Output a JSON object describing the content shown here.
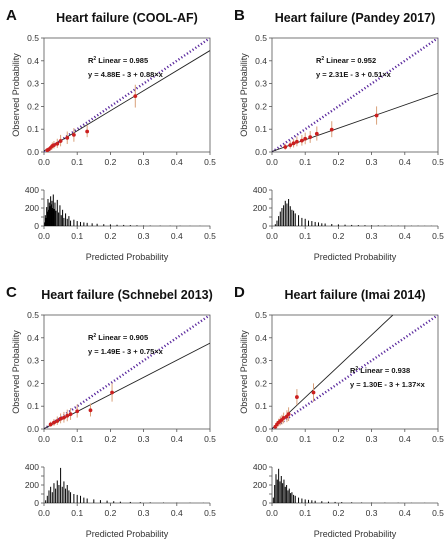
{
  "panels": [
    {
      "letter": "A",
      "title": "Heart failure (COOL-AF)",
      "ylabel": "Observed Probability",
      "xlabel": "Predicted Probability",
      "r2_text": "Linear = 0.985",
      "eq_text": "y = 4.88E - 3 + 0.88×x"
    },
    {
      "letter": "B",
      "title": "Heart failure (Pandey 2017)",
      "ylabel": "Observed Probability",
      "xlabel": "Predicted Probability",
      "r2_text": "Linear = 0.952",
      "eq_text": "y = 2.31E - 3 + 0.51×x"
    },
    {
      "letter": "C",
      "title": "Heart failure (Schnebel 2013)",
      "ylabel": "Observed Probability",
      "xlabel": "Predicted Probability",
      "r2_text": "Linear = 0.905",
      "eq_text": "y = 1.49E - 3 + 0.75×x"
    },
    {
      "letter": "D",
      "title": "Heart failure (Imai 2014)",
      "ylabel": "Observed Probability",
      "xlabel": "Predicted Probability",
      "r2_text": "Linear = 0.938",
      "eq_text": "y = 1.30E - 3 + 1.37×x"
    }
  ],
  "colors": {
    "identity": "#5b2a9e",
    "fit": "#222222",
    "point": "#cc1f1f",
    "errorbar": "#d9a07a",
    "hist": "#000000"
  },
  "chart_data": [
    {
      "type": "scatter",
      "title": "Heart failure (COOL-AF)",
      "xlabel": "Predicted Probability",
      "ylabel": "Observed Probability",
      "xlim": [
        0,
        0.5
      ],
      "ylim": [
        0,
        0.5
      ],
      "xticks": [
        "0.0",
        "0.1",
        "0.2",
        "0.3",
        "0.4",
        "0.5"
      ],
      "yticks": [
        "0.0",
        "0.1",
        "0.2",
        "0.3",
        "0.4",
        "0.5"
      ],
      "fit": {
        "intercept": 0.00488,
        "slope": 0.88,
        "r2": 0.985
      },
      "points": [
        {
          "x": 0.01,
          "y": 0.008,
          "lo": 0.004,
          "hi": 0.014
        },
        {
          "x": 0.015,
          "y": 0.012,
          "lo": 0.006,
          "hi": 0.02
        },
        {
          "x": 0.02,
          "y": 0.018,
          "lo": 0.008,
          "hi": 0.03
        },
        {
          "x": 0.025,
          "y": 0.026,
          "lo": 0.012,
          "hi": 0.042
        },
        {
          "x": 0.03,
          "y": 0.03,
          "lo": 0.015,
          "hi": 0.048
        },
        {
          "x": 0.04,
          "y": 0.036,
          "lo": 0.018,
          "hi": 0.058
        },
        {
          "x": 0.05,
          "y": 0.048,
          "lo": 0.025,
          "hi": 0.075
        },
        {
          "x": 0.07,
          "y": 0.062,
          "lo": 0.035,
          "hi": 0.09
        },
        {
          "x": 0.09,
          "y": 0.075,
          "lo": 0.045,
          "hi": 0.105
        },
        {
          "x": 0.13,
          "y": 0.09,
          "lo": 0.065,
          "hi": 0.118
        },
        {
          "x": 0.275,
          "y": 0.245,
          "lo": 0.195,
          "hi": 0.295
        }
      ],
      "hist": {
        "ylim": [
          0,
          400
        ],
        "yticks": [
          "0",
          "100",
          "200",
          "300",
          "400"
        ],
        "bins": [
          0.002,
          0.004,
          0.006,
          0.008,
          0.01,
          0.012,
          0.014,
          0.016,
          0.018,
          0.02,
          0.022,
          0.024,
          0.026,
          0.028,
          0.03,
          0.033,
          0.036,
          0.04,
          0.044,
          0.048,
          0.052,
          0.056,
          0.06,
          0.065,
          0.07,
          0.075,
          0.08,
          0.09,
          0.1,
          0.11,
          0.12,
          0.13,
          0.145,
          0.16,
          0.18,
          0.2,
          0.22,
          0.24,
          0.26,
          0.28,
          0.3,
          0.32,
          0.35,
          0.38,
          0.41,
          0.44,
          0.47,
          0.5
        ],
        "counts": [
          40,
          120,
          90,
          210,
          160,
          300,
          180,
          260,
          220,
          330,
          240,
          280,
          200,
          350,
          190,
          260,
          170,
          290,
          150,
          230,
          120,
          180,
          90,
          140,
          80,
          110,
          60,
          70,
          55,
          45,
          40,
          35,
          30,
          25,
          20,
          18,
          14,
          12,
          10,
          8,
          6,
          5,
          4,
          3,
          3,
          2,
          2,
          1
        ]
      }
    },
    {
      "type": "scatter",
      "title": "Heart failure (Pandey 2017)",
      "xlabel": "Predicted Probability",
      "ylabel": "Observed Probability",
      "xlim": [
        0,
        0.5
      ],
      "ylim": [
        0,
        0.5
      ],
      "xticks": [
        "0.0",
        "0.1",
        "0.2",
        "0.3",
        "0.4",
        "0.5"
      ],
      "yticks": [
        "0.0",
        "0.1",
        "0.2",
        "0.3",
        "0.4",
        "0.5"
      ],
      "fit": {
        "intercept": 0.00231,
        "slope": 0.51,
        "r2": 0.952
      },
      "points": [
        {
          "x": 0.04,
          "y": 0.022,
          "lo": 0.01,
          "hi": 0.036
        },
        {
          "x": 0.055,
          "y": 0.03,
          "lo": 0.015,
          "hi": 0.048
        },
        {
          "x": 0.065,
          "y": 0.038,
          "lo": 0.02,
          "hi": 0.058
        },
        {
          "x": 0.075,
          "y": 0.045,
          "lo": 0.025,
          "hi": 0.068
        },
        {
          "x": 0.09,
          "y": 0.05,
          "lo": 0.028,
          "hi": 0.075
        },
        {
          "x": 0.1,
          "y": 0.058,
          "lo": 0.034,
          "hi": 0.085
        },
        {
          "x": 0.115,
          "y": 0.065,
          "lo": 0.04,
          "hi": 0.092
        },
        {
          "x": 0.135,
          "y": 0.08,
          "lo": 0.05,
          "hi": 0.112
        },
        {
          "x": 0.18,
          "y": 0.098,
          "lo": 0.065,
          "hi": 0.135
        },
        {
          "x": 0.315,
          "y": 0.16,
          "lo": 0.12,
          "hi": 0.2
        }
      ],
      "hist": {
        "ylim": [
          0,
          400
        ],
        "yticks": [
          "0",
          "100",
          "200",
          "300",
          "400"
        ],
        "bins": [
          0.01,
          0.015,
          0.02,
          0.025,
          0.03,
          0.035,
          0.04,
          0.045,
          0.05,
          0.055,
          0.06,
          0.065,
          0.07,
          0.08,
          0.09,
          0.1,
          0.11,
          0.12,
          0.13,
          0.14,
          0.15,
          0.16,
          0.18,
          0.2,
          0.22,
          0.24,
          0.26,
          0.28,
          0.3,
          0.32,
          0.34,
          0.36,
          0.38,
          0.4,
          0.42,
          0.44,
          0.46,
          0.48
        ],
        "counts": [
          20,
          60,
          110,
          160,
          200,
          230,
          280,
          250,
          300,
          220,
          180,
          170,
          140,
          120,
          90,
          80,
          60,
          55,
          45,
          40,
          30,
          28,
          22,
          18,
          15,
          12,
          10,
          9,
          8,
          7,
          6,
          5,
          4,
          4,
          3,
          3,
          2,
          2
        ]
      }
    },
    {
      "type": "scatter",
      "title": "Heart failure (Schnebel 2013)",
      "xlabel": "Predicted Probability",
      "ylabel": "Observed Probability",
      "xlim": [
        0,
        0.5
      ],
      "ylim": [
        0,
        0.5
      ],
      "xticks": [
        "0.0",
        "0.1",
        "0.2",
        "0.3",
        "0.4",
        "0.5"
      ],
      "yticks": [
        "0.0",
        "0.1",
        "0.2",
        "0.3",
        "0.4",
        "0.5"
      ],
      "fit": {
        "intercept": 0.00149,
        "slope": 0.75,
        "r2": 0.905
      },
      "points": [
        {
          "x": 0.02,
          "y": 0.02,
          "lo": 0.01,
          "hi": 0.032
        },
        {
          "x": 0.03,
          "y": 0.028,
          "lo": 0.014,
          "hi": 0.044
        },
        {
          "x": 0.04,
          "y": 0.035,
          "lo": 0.018,
          "hi": 0.055
        },
        {
          "x": 0.05,
          "y": 0.045,
          "lo": 0.025,
          "hi": 0.068
        },
        {
          "x": 0.06,
          "y": 0.05,
          "lo": 0.028,
          "hi": 0.075
        },
        {
          "x": 0.07,
          "y": 0.058,
          "lo": 0.034,
          "hi": 0.085
        },
        {
          "x": 0.08,
          "y": 0.065,
          "lo": 0.04,
          "hi": 0.092
        },
        {
          "x": 0.1,
          "y": 0.078,
          "lo": 0.05,
          "hi": 0.108
        },
        {
          "x": 0.14,
          "y": 0.082,
          "lo": 0.055,
          "hi": 0.112
        },
        {
          "x": 0.205,
          "y": 0.16,
          "lo": 0.12,
          "hi": 0.2
        }
      ],
      "hist": {
        "ylim": [
          0,
          400
        ],
        "yticks": [
          "0",
          "100",
          "200",
          "300",
          "400"
        ],
        "bins": [
          0.005,
          0.01,
          0.015,
          0.02,
          0.025,
          0.03,
          0.035,
          0.04,
          0.045,
          0.05,
          0.055,
          0.06,
          0.065,
          0.07,
          0.075,
          0.08,
          0.09,
          0.1,
          0.11,
          0.12,
          0.13,
          0.15,
          0.17,
          0.19,
          0.21,
          0.23,
          0.26,
          0.29,
          0.32,
          0.36,
          0.4,
          0.44,
          0.48
        ],
        "counts": [
          30,
          80,
          140,
          180,
          120,
          220,
          160,
          250,
          200,
          390,
          180,
          240,
          160,
          200,
          140,
          120,
          100,
          90,
          80,
          60,
          50,
          40,
          32,
          26,
          20,
          15,
          12,
          9,
          7,
          5,
          4,
          3,
          2
        ]
      }
    },
    {
      "type": "scatter",
      "title": "Heart failure (Imai 2014)",
      "xlabel": "Predicted Probability",
      "ylabel": "Observed Probability",
      "xlim": [
        0,
        0.5
      ],
      "ylim": [
        0,
        0.5
      ],
      "xticks": [
        "0.0",
        "0.1",
        "0.2",
        "0.3",
        "0.4",
        "0.5"
      ],
      "yticks": [
        "0.0",
        "0.1",
        "0.2",
        "0.3",
        "0.4",
        "0.5"
      ],
      "fit": {
        "intercept": 0.0013,
        "slope": 1.37,
        "r2": 0.938
      },
      "points": [
        {
          "x": 0.01,
          "y": 0.01,
          "lo": 0.004,
          "hi": 0.018
        },
        {
          "x": 0.015,
          "y": 0.02,
          "lo": 0.008,
          "hi": 0.035
        },
        {
          "x": 0.02,
          "y": 0.028,
          "lo": 0.012,
          "hi": 0.045
        },
        {
          "x": 0.025,
          "y": 0.035,
          "lo": 0.016,
          "hi": 0.055
        },
        {
          "x": 0.03,
          "y": 0.04,
          "lo": 0.02,
          "hi": 0.062
        },
        {
          "x": 0.035,
          "y": 0.048,
          "lo": 0.025,
          "hi": 0.072
        },
        {
          "x": 0.045,
          "y": 0.055,
          "lo": 0.03,
          "hi": 0.082
        },
        {
          "x": 0.05,
          "y": 0.065,
          "lo": 0.035,
          "hi": 0.095
        },
        {
          "x": 0.075,
          "y": 0.14,
          "lo": 0.105,
          "hi": 0.175
        },
        {
          "x": 0.125,
          "y": 0.16,
          "lo": 0.12,
          "hi": 0.2
        }
      ],
      "hist": {
        "ylim": [
          0,
          400
        ],
        "yticks": [
          "0",
          "100",
          "200",
          "300",
          "400"
        ],
        "bins": [
          0.004,
          0.008,
          0.012,
          0.016,
          0.02,
          0.024,
          0.028,
          0.032,
          0.036,
          0.04,
          0.044,
          0.048,
          0.052,
          0.056,
          0.06,
          0.065,
          0.07,
          0.08,
          0.09,
          0.1,
          0.11,
          0.12,
          0.13,
          0.15,
          0.17,
          0.19,
          0.21,
          0.24,
          0.27,
          0.3,
          0.34,
          0.38,
          0.42,
          0.46
        ],
        "counts": [
          60,
          200,
          320,
          260,
          380,
          240,
          300,
          220,
          260,
          180,
          200,
          140,
          160,
          110,
          120,
          90,
          80,
          60,
          50,
          40,
          35,
          30,
          25,
          20,
          15,
          12,
          10,
          8,
          6,
          5,
          4,
          3,
          2,
          2
        ]
      }
    }
  ]
}
